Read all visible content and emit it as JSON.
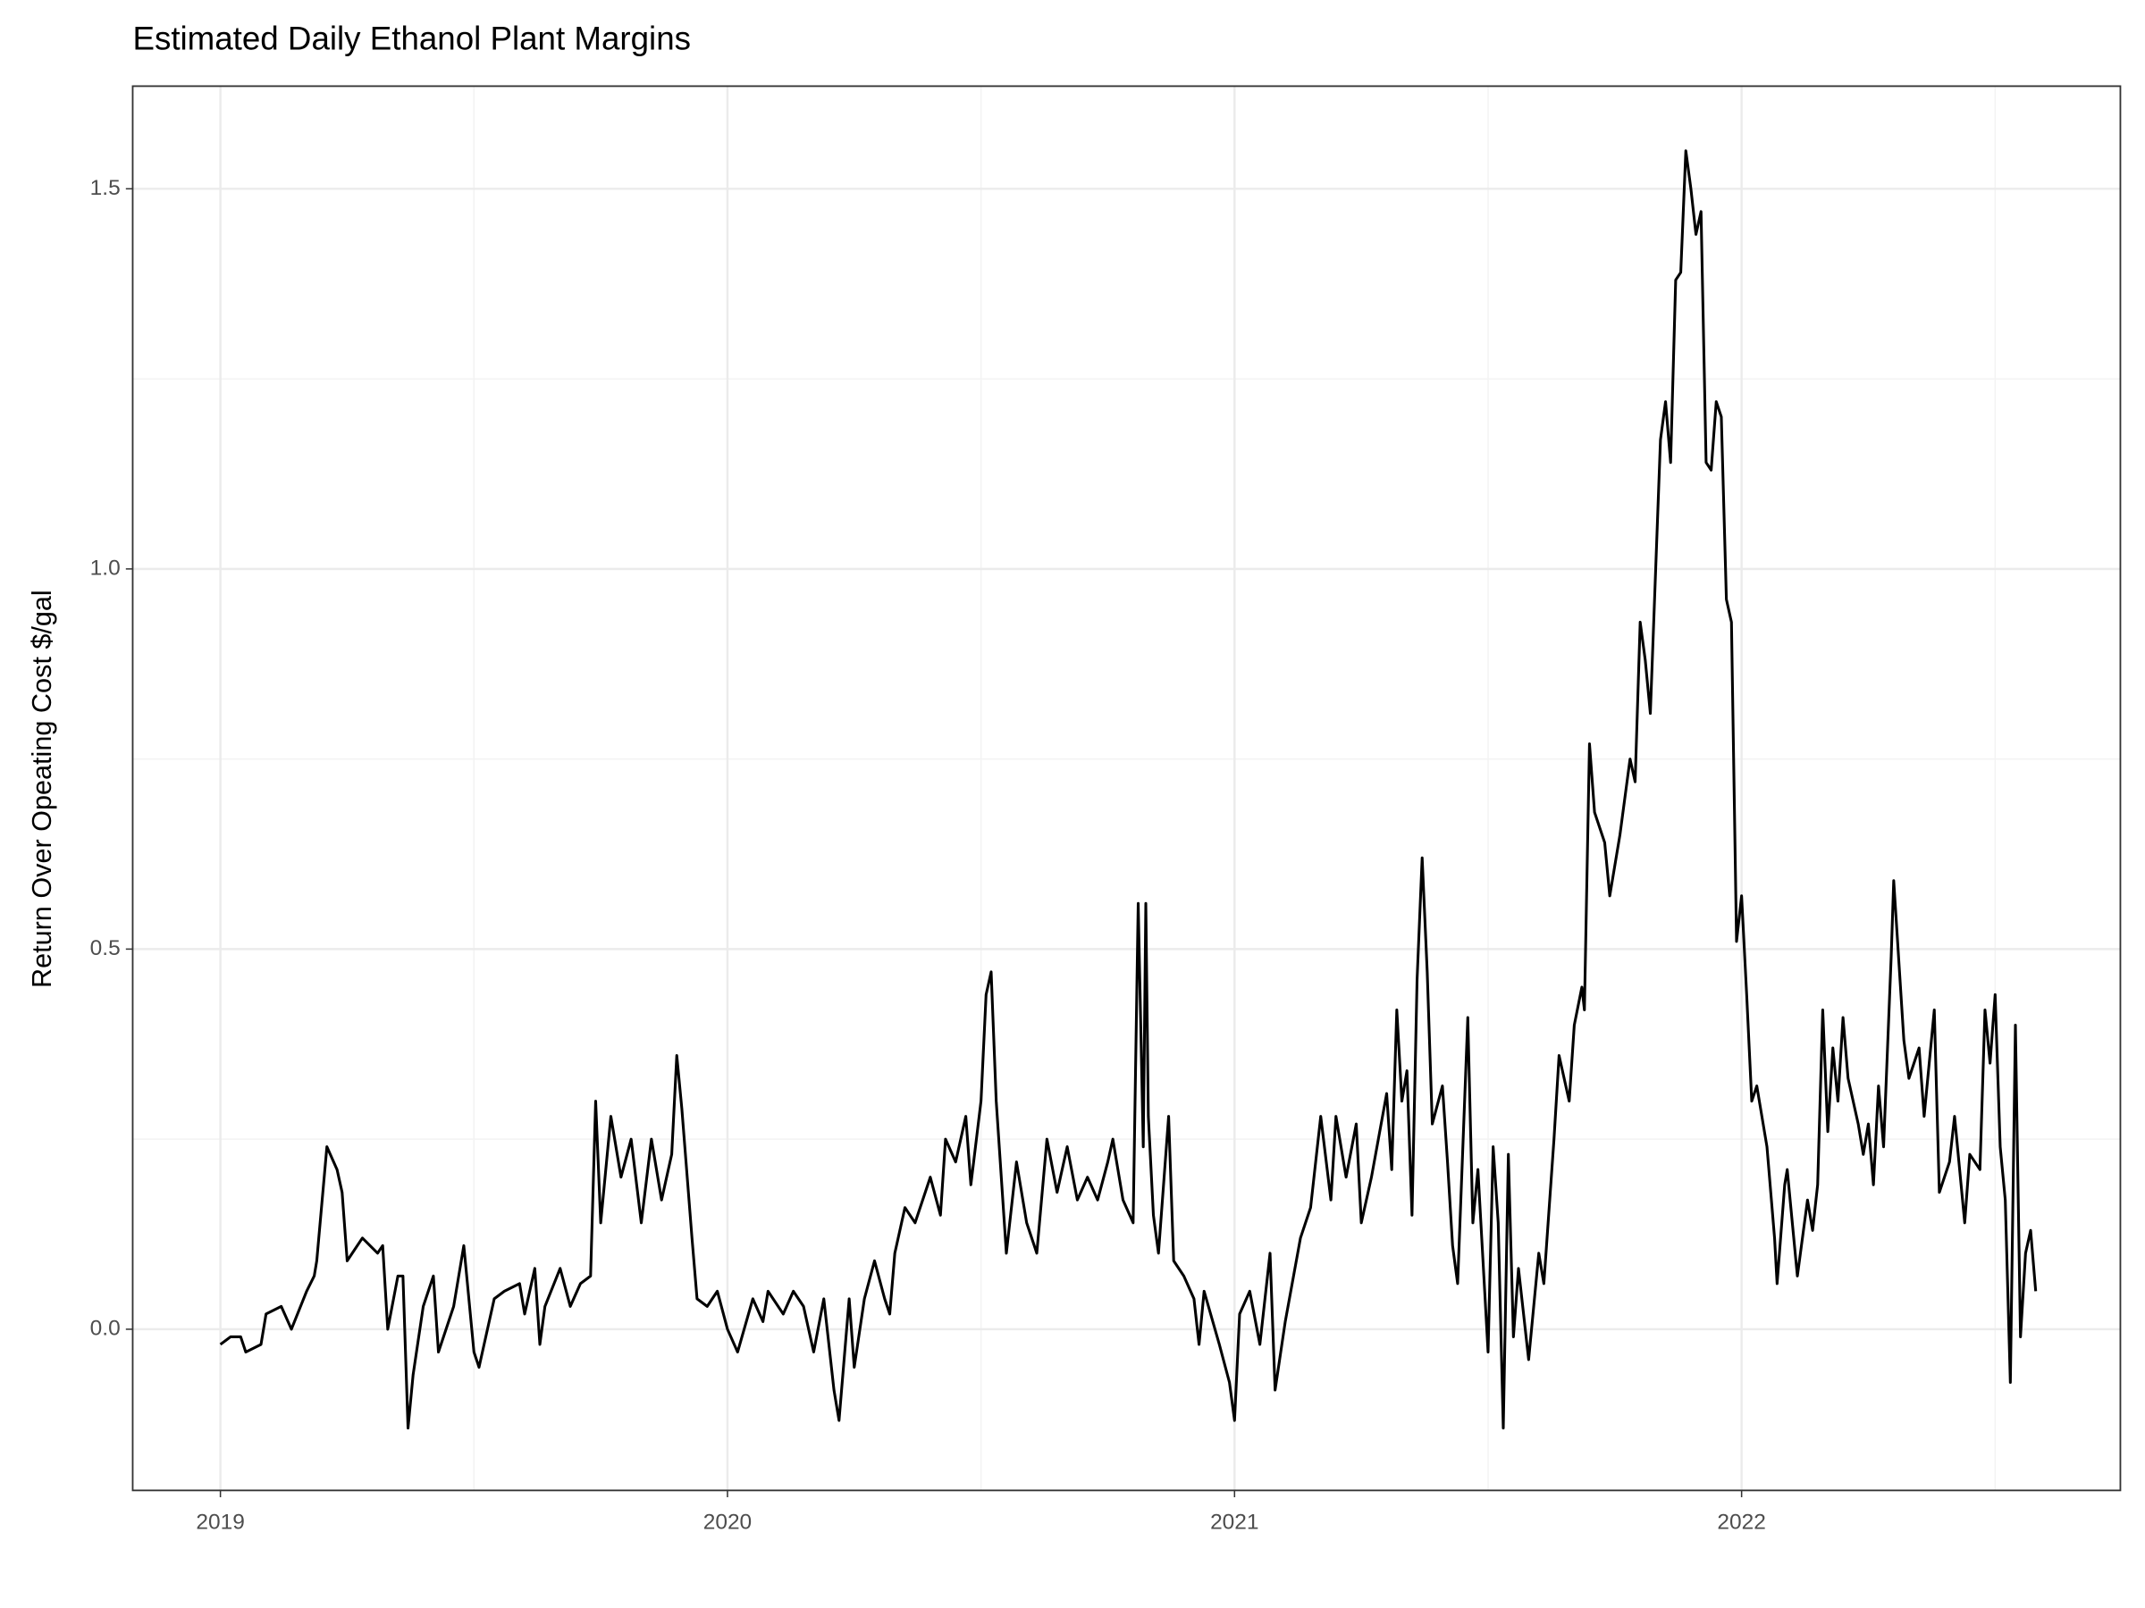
{
  "chart_data": {
    "type": "line",
    "title": "Estimated Daily Ethanol Plant Margins",
    "y_label": "Return Over Opeating Cost $/gal",
    "color": "#000000",
    "grid": true,
    "xlim": [
      2018.827,
      2022.747
    ],
    "ylim": [
      -0.212,
      1.635
    ],
    "xticks": [
      2019,
      2020,
      2021,
      2022
    ],
    "yticks": [
      {
        "value": 0,
        "label": "0.0"
      },
      0.5,
      {
        "value": 1,
        "label": "1.0"
      },
      1.5
    ],
    "x": [
      2019.0,
      2019.02,
      2019.04,
      2019.05,
      2019.08,
      2019.09,
      2019.12,
      2019.14,
      2019.17,
      2019.185,
      2019.19,
      2019.21,
      2019.23,
      2019.24,
      2019.25,
      2019.28,
      2019.31,
      2019.32,
      2019.33,
      2019.35,
      2019.36,
      2019.37,
      2019.38,
      2019.4,
      2019.42,
      2019.43,
      2019.46,
      2019.48,
      2019.5,
      2019.51,
      2019.54,
      2019.56,
      2019.59,
      2019.6,
      2019.62,
      2019.63,
      2019.64,
      2019.67,
      2019.69,
      2019.71,
      2019.73,
      2019.74,
      2019.75,
      2019.77,
      2019.79,
      2019.81,
      2019.83,
      2019.85,
      2019.87,
      2019.89,
      2019.9,
      2019.91,
      2019.93,
      2019.94,
      2019.96,
      2019.98,
      2020.0,
      2020.02,
      2020.05,
      2020.07,
      2020.08,
      2020.11,
      2020.13,
      2020.15,
      2020.17,
      2020.19,
      2020.21,
      2020.22,
      2020.24,
      2020.25,
      2020.27,
      2020.29,
      2020.31,
      2020.32,
      2020.33,
      2020.35,
      2020.37,
      2020.39,
      2020.4,
      2020.42,
      2020.43,
      2020.45,
      2020.47,
      2020.48,
      2020.5,
      2020.51,
      2020.52,
      2020.53,
      2020.55,
      2020.57,
      2020.59,
      2020.61,
      2020.63,
      2020.65,
      2020.67,
      2020.69,
      2020.71,
      2020.73,
      2020.75,
      2020.76,
      2020.78,
      2020.8,
      2020.81,
      2020.82,
      2020.825,
      2020.83,
      2020.84,
      2020.85,
      2020.87,
      2020.88,
      2020.9,
      2020.92,
      2020.93,
      2020.94,
      2020.97,
      2020.99,
      2021.0,
      2021.01,
      2021.03,
      2021.05,
      2021.07,
      2021.08,
      2021.1,
      2021.13,
      2021.15,
      2021.17,
      2021.19,
      2021.2,
      2021.22,
      2021.24,
      2021.25,
      2021.27,
      2021.3,
      2021.31,
      2021.32,
      2021.33,
      2021.34,
      2021.35,
      2021.36,
      2021.37,
      2021.38,
      2021.39,
      2021.41,
      2021.42,
      2021.43,
      2021.44,
      2021.46,
      2021.47,
      2021.48,
      2021.5,
      2021.51,
      2021.52,
      2021.53,
      2021.54,
      2021.55,
      2021.56,
      2021.58,
      2021.6,
      2021.61,
      2021.63,
      2021.64,
      2021.66,
      2021.67,
      2021.685,
      2021.69,
      2021.7,
      2021.71,
      2021.73,
      2021.74,
      2021.76,
      2021.78,
      2021.79,
      2021.8,
      2021.81,
      2021.82,
      2021.84,
      2021.85,
      2021.86,
      2021.87,
      2021.88,
      2021.89,
      2021.9,
      2021.91,
      2021.92,
      2021.93,
      2021.94,
      2021.95,
      2021.96,
      2021.97,
      2021.98,
      2021.99,
      2022.0,
      2022.01,
      2022.02,
      2022.03,
      2022.05,
      2022.065,
      2022.07,
      2022.085,
      2022.09,
      2022.11,
      2022.13,
      2022.14,
      2022.15,
      2022.16,
      2022.17,
      2022.18,
      2022.19,
      2022.2,
      2022.21,
      2022.23,
      2022.24,
      2022.25,
      2022.26,
      2022.27,
      2022.28,
      2022.295,
      2022.3,
      2022.32,
      2022.33,
      2022.35,
      2022.36,
      2022.38,
      2022.39,
      2022.41,
      2022.42,
      2022.44,
      2022.45,
      2022.47,
      2022.48,
      2022.49,
      2022.5,
      2022.51,
      2022.52,
      2022.53,
      2022.54,
      2022.55,
      2022.56,
      2022.57,
      2022.58
    ],
    "values": [
      -0.02,
      -0.01,
      -0.01,
      -0.03,
      -0.02,
      0.02,
      0.03,
      0.0,
      0.05,
      0.07,
      0.09,
      0.24,
      0.21,
      0.18,
      0.09,
      0.12,
      0.1,
      0.11,
      0.0,
      0.07,
      0.07,
      -0.13,
      -0.06,
      0.03,
      0.07,
      -0.03,
      0.03,
      0.11,
      -0.03,
      -0.05,
      0.04,
      0.05,
      0.06,
      0.02,
      0.08,
      -0.02,
      0.03,
      0.08,
      0.03,
      0.06,
      0.07,
      0.3,
      0.14,
      0.28,
      0.2,
      0.25,
      0.14,
      0.25,
      0.17,
      0.23,
      0.36,
      0.29,
      0.12,
      0.04,
      0.03,
      0.05,
      0.0,
      -0.03,
      0.04,
      0.01,
      0.05,
      0.02,
      0.05,
      0.03,
      -0.03,
      0.04,
      -0.08,
      -0.12,
      0.04,
      -0.05,
      0.04,
      0.09,
      0.04,
      0.02,
      0.1,
      0.16,
      0.14,
      0.18,
      0.2,
      0.15,
      0.25,
      0.22,
      0.28,
      0.19,
      0.3,
      0.44,
      0.47,
      0.3,
      0.1,
      0.22,
      0.14,
      0.1,
      0.25,
      0.18,
      0.24,
      0.17,
      0.2,
      0.17,
      0.22,
      0.25,
      0.17,
      0.14,
      0.56,
      0.24,
      0.56,
      0.28,
      0.15,
      0.1,
      0.28,
      0.09,
      0.07,
      0.04,
      -0.02,
      0.05,
      -0.02,
      -0.07,
      -0.12,
      0.02,
      0.05,
      -0.02,
      0.1,
      -0.08,
      0.01,
      0.12,
      0.16,
      0.28,
      0.17,
      0.28,
      0.2,
      0.27,
      0.14,
      0.2,
      0.31,
      0.21,
      0.42,
      0.3,
      0.34,
      0.15,
      0.46,
      0.62,
      0.47,
      0.27,
      0.32,
      0.22,
      0.11,
      0.06,
      0.41,
      0.14,
      0.21,
      -0.03,
      0.24,
      0.14,
      -0.13,
      0.23,
      -0.01,
      0.08,
      -0.04,
      0.1,
      0.06,
      0.25,
      0.36,
      0.3,
      0.4,
      0.45,
      0.42,
      0.77,
      0.68,
      0.64,
      0.57,
      0.65,
      0.75,
      0.72,
      0.93,
      0.88,
      0.81,
      1.17,
      1.22,
      1.14,
      1.38,
      1.39,
      1.55,
      1.5,
      1.44,
      1.47,
      1.14,
      1.13,
      1.22,
      1.2,
      0.96,
      0.93,
      0.51,
      0.57,
      0.44,
      0.3,
      0.32,
      0.24,
      0.12,
      0.06,
      0.19,
      0.21,
      0.07,
      0.17,
      0.13,
      0.19,
      0.42,
      0.26,
      0.37,
      0.3,
      0.41,
      0.33,
      0.27,
      0.23,
      0.27,
      0.19,
      0.32,
      0.24,
      0.49,
      0.59,
      0.38,
      0.33,
      0.37,
      0.28,
      0.42,
      0.18,
      0.22,
      0.28,
      0.14,
      0.23,
      0.21,
      0.42,
      0.35,
      0.44,
      0.24,
      0.17,
      -0.07,
      0.4,
      -0.01,
      0.1,
      0.13,
      0.05
    ]
  }
}
